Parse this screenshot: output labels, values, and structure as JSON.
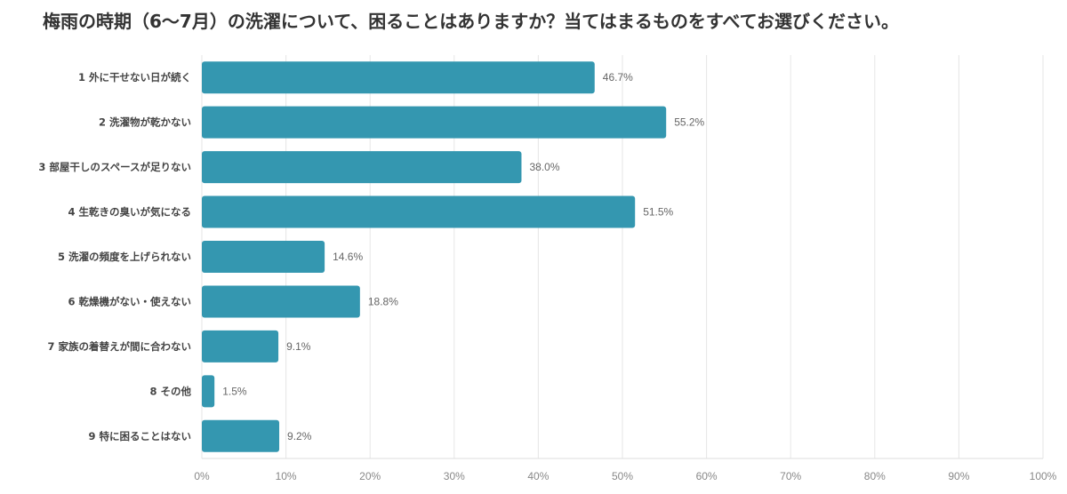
{
  "chart_data": {
    "type": "bar",
    "orientation": "horizontal",
    "title": "梅雨の時期（6〜7月）の洗濯について、困ることはありますか？当てはまるものをすべてお選びください。",
    "categories": [
      "1 外に干せない日が続く",
      "2 洗濯物が乾かない",
      "3 部屋干しのスペースが足りない",
      "4 生乾きの臭いが気になる",
      "5 洗濯の頻度を上げられない",
      "6 乾燥機がない・使えない",
      "7 家族の着替えが間に合わない",
      "8 その他",
      "9 特に困ることはない"
    ],
    "values": [
      46.7,
      55.2,
      38.0,
      51.5,
      14.6,
      18.8,
      9.1,
      1.5,
      9.2
    ],
    "value_labels": [
      "46.7%",
      "55.2%",
      "38.0%",
      "51.5%",
      "14.6%",
      "18.8%",
      "9.1%",
      "1.5%",
      "9.2%"
    ],
    "xlim": [
      0,
      100
    ],
    "x_ticks": [
      "0%",
      "10%",
      "20%",
      "30%",
      "40%",
      "50%",
      "60%",
      "70%",
      "80%",
      "90%",
      "100%"
    ],
    "grid": true,
    "bar_color": "#3497b0"
  }
}
